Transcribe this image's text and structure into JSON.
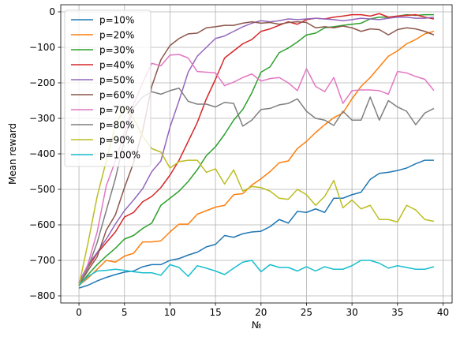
{
  "chart_data": {
    "type": "line",
    "xlabel": "№",
    "ylabel": "Mean reward",
    "xlim": [
      -2,
      41
    ],
    "ylim": [
      -820,
      20
    ],
    "xticks": [
      0,
      5,
      10,
      15,
      20,
      25,
      30,
      35,
      40
    ],
    "yticks": [
      0,
      -100,
      -200,
      -300,
      -400,
      -500,
      -600,
      -700,
      -800
    ],
    "grid": true,
    "legend_position": "top-left",
    "x": [
      0,
      1,
      2,
      3,
      4,
      5,
      6,
      7,
      8,
      9,
      10,
      11,
      12,
      13,
      14,
      15,
      16,
      17,
      18,
      19,
      20,
      21,
      22,
      23,
      24,
      25,
      26,
      27,
      28,
      29,
      30,
      31,
      32,
      33,
      34,
      35,
      36,
      37,
      38,
      39
    ],
    "series": [
      {
        "name": "p=10%",
        "color": "#1f77b4",
        "values": [
          -778,
          -770,
          -758,
          -748,
          -740,
          -733,
          -730,
          -718,
          -712,
          -712,
          -700,
          -695,
          -685,
          -677,
          -662,
          -655,
          -630,
          -635,
          -625,
          -620,
          -618,
          -605,
          -585,
          -595,
          -562,
          -565,
          -555,
          -565,
          -525,
          -525,
          -515,
          -508,
          -472,
          -455,
          -452,
          -447,
          -440,
          -428,
          -418,
          -418
        ]
      },
      {
        "name": "p=20%",
        "color": "#ff7f0e",
        "values": [
          -770,
          -750,
          -725,
          -700,
          -705,
          -688,
          -680,
          -648,
          -648,
          -645,
          -620,
          -598,
          -598,
          -570,
          -560,
          -550,
          -545,
          -515,
          -512,
          -488,
          -470,
          -450,
          -425,
          -420,
          -385,
          -365,
          -340,
          -318,
          -298,
          -285,
          -245,
          -210,
          -185,
          -155,
          -125,
          -110,
          -90,
          -78,
          -62,
          -55
        ]
      },
      {
        "name": "p=30%",
        "color": "#2ca02c",
        "values": [
          -772,
          -740,
          -712,
          -688,
          -666,
          -640,
          -630,
          -610,
          -595,
          -545,
          -525,
          -505,
          -478,
          -445,
          -405,
          -380,
          -345,
          -305,
          -275,
          -228,
          -170,
          -155,
          -115,
          -102,
          -85,
          -65,
          -60,
          -45,
          -42,
          -38,
          -35,
          -32,
          -20,
          -15,
          -15,
          -12,
          -8,
          -10,
          -8,
          -8
        ]
      },
      {
        "name": "p=40%",
        "color": "#d62728",
        "values": [
          -765,
          -720,
          -680,
          -650,
          -620,
          -578,
          -565,
          -535,
          -520,
          -495,
          -460,
          -418,
          -365,
          -312,
          -245,
          -190,
          -130,
          -110,
          -90,
          -78,
          -55,
          -48,
          -38,
          -28,
          -35,
          -22,
          -18,
          -20,
          -15,
          -12,
          -8,
          -8,
          -12,
          -5,
          -15,
          -12,
          -10,
          -8,
          -15,
          -20
        ]
      },
      {
        "name": "p=50%",
        "color": "#9467bd",
        "values": [
          -762,
          -712,
          -678,
          -640,
          -598,
          -560,
          -530,
          -498,
          -450,
          -420,
          -325,
          -250,
          -170,
          -125,
          -100,
          -75,
          -68,
          -55,
          -42,
          -32,
          -25,
          -28,
          -25,
          -20,
          -22,
          -20,
          -18,
          -20,
          -22,
          -25,
          -22,
          -18,
          -20,
          -22,
          -18,
          -15,
          -15,
          -18,
          -18,
          -15
        ]
      },
      {
        "name": "p=60%",
        "color": "#8c564b",
        "values": [
          -770,
          -728,
          -690,
          -615,
          -572,
          -495,
          -425,
          -335,
          -210,
          -135,
          -95,
          -75,
          -62,
          -60,
          -45,
          -42,
          -38,
          -38,
          -32,
          -28,
          -32,
          -30,
          -35,
          -30,
          -28,
          -30,
          -45,
          -42,
          -45,
          -40,
          -45,
          -55,
          -48,
          -50,
          -65,
          -50,
          -45,
          -48,
          -55,
          -65
        ]
      },
      {
        "name": "p=70%",
        "color": "#e377c2",
        "values": [
          -770,
          -710,
          -620,
          -490,
          -420,
          -340,
          -260,
          -200,
          -145,
          -152,
          -122,
          -120,
          -130,
          -168,
          -170,
          -172,
          -208,
          -198,
          -185,
          -175,
          -195,
          -188,
          -185,
          -200,
          -222,
          -160,
          -210,
          -225,
          -185,
          -258,
          -222,
          -220,
          -220,
          -222,
          -232,
          -168,
          -172,
          -182,
          -190,
          -222
        ]
      },
      {
        "name": "p=80%",
        "color": "#7f7f7f",
        "values": [
          -770,
          -720,
          -650,
          -560,
          -470,
          -360,
          -270,
          -240,
          -225,
          -232,
          -222,
          -215,
          -252,
          -260,
          -260,
          -268,
          -255,
          -258,
          -322,
          -305,
          -275,
          -272,
          -262,
          -258,
          -245,
          -280,
          -300,
          -305,
          -320,
          -280,
          -305,
          -305,
          -240,
          -305,
          -250,
          -268,
          -280,
          -318,
          -285,
          -272
        ]
      },
      {
        "name": "p=90%",
        "color": "#bcbd22",
        "values": [
          -770,
          -650,
          -520,
          -420,
          -320,
          -270,
          -300,
          -350,
          -385,
          -395,
          -440,
          -422,
          -418,
          -418,
          -452,
          -442,
          -485,
          -445,
          -505,
          -492,
          -495,
          -505,
          -525,
          -528,
          -500,
          -515,
          -545,
          -520,
          -475,
          -552,
          -530,
          -555,
          -545,
          -585,
          -585,
          -592,
          -545,
          -558,
          -585,
          -590
        ]
      },
      {
        "name": "p=100%",
        "color": "#17becf",
        "values": [
          -770,
          -745,
          -730,
          -728,
          -725,
          -728,
          -732,
          -735,
          -735,
          -742,
          -712,
          -720,
          -745,
          -715,
          -722,
          -730,
          -740,
          -722,
          -705,
          -700,
          -732,
          -712,
          -720,
          -720,
          -730,
          -718,
          -730,
          -718,
          -725,
          -725,
          -715,
          -700,
          -700,
          -708,
          -722,
          -715,
          -720,
          -725,
          -725,
          -718
        ]
      }
    ]
  }
}
